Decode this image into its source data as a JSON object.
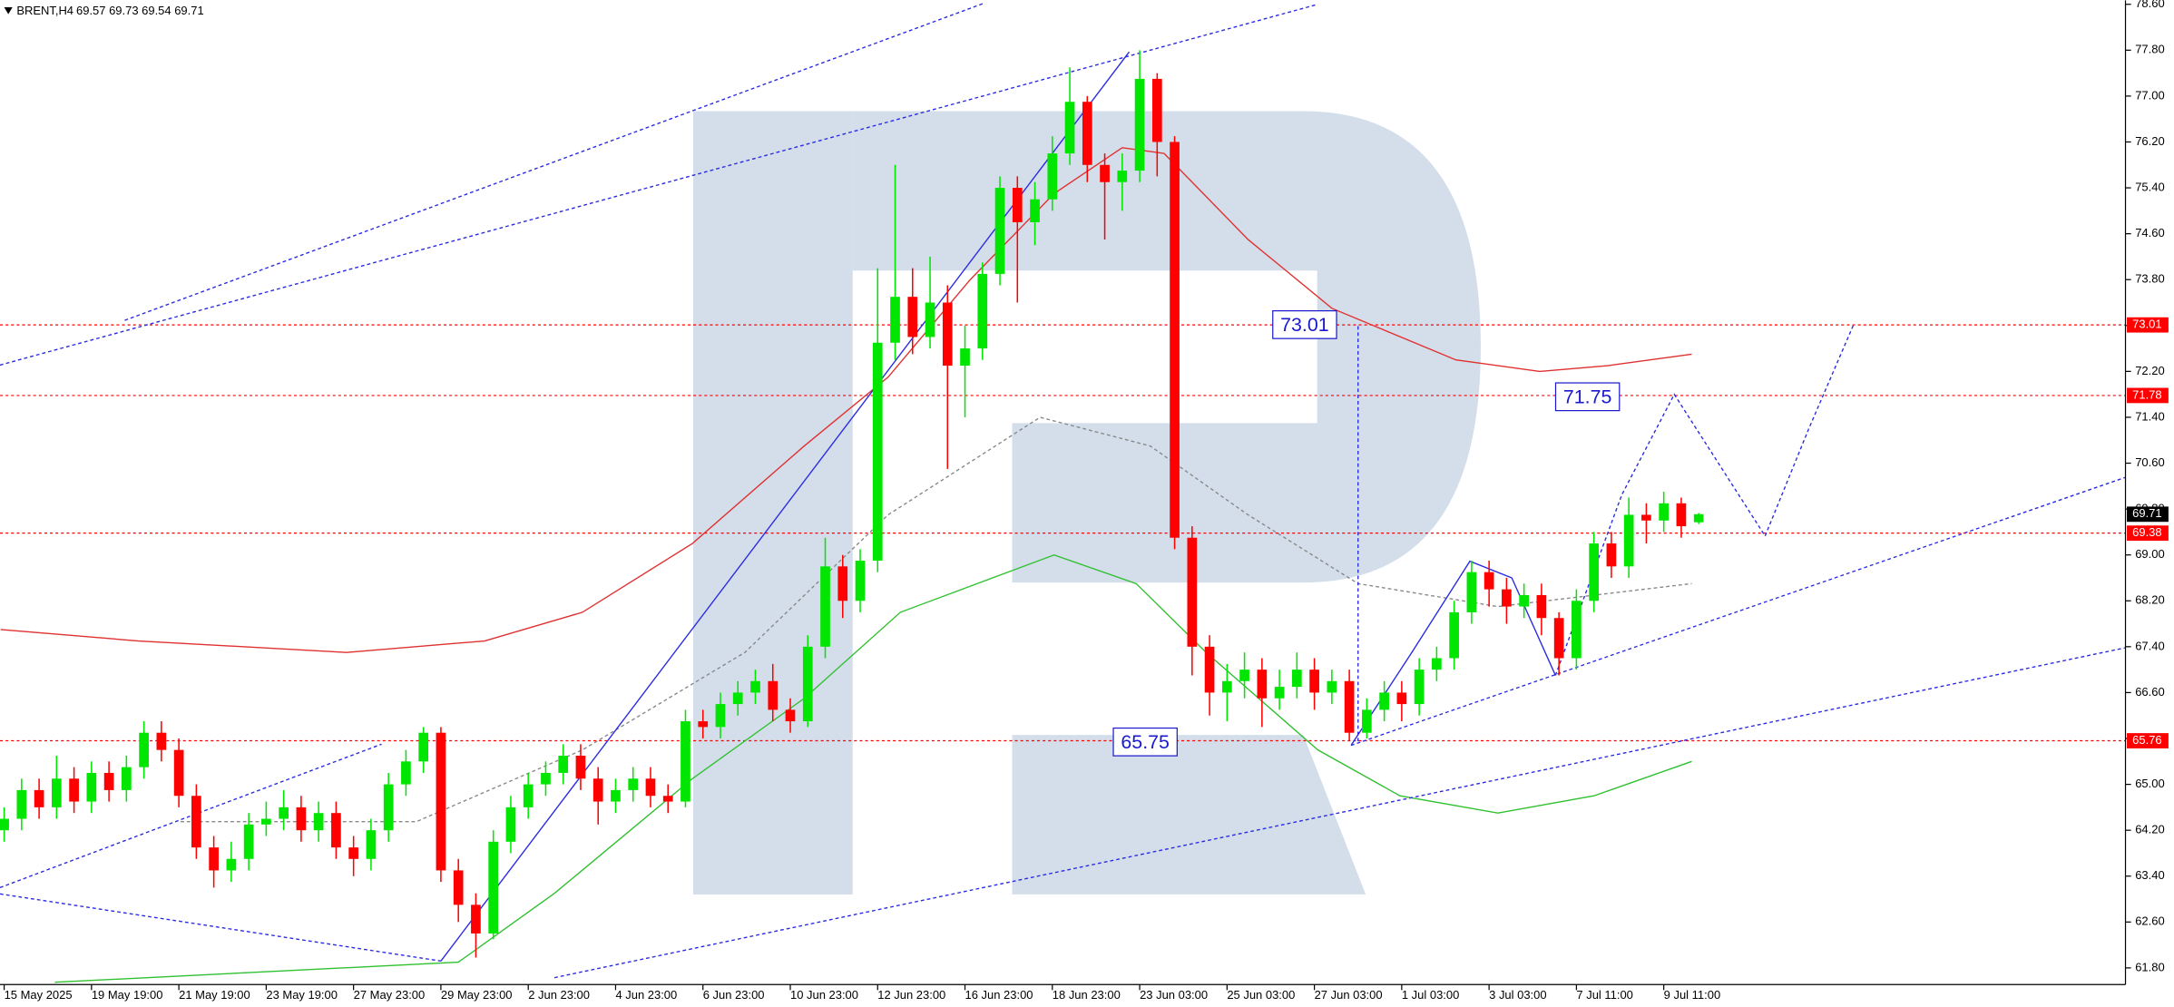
{
  "chart_data": {
    "type": "candlestick",
    "title": "BRENT,H4",
    "ohlc_text": "69.57 69.73 69.54 69.71",
    "up_color": "#00e600",
    "down_color": "#ff0000",
    "categories": [
      "15 May 2025",
      null,
      null,
      null,
      null,
      "19 May 19:00",
      null,
      null,
      null,
      null,
      "21 May 19:00",
      null,
      null,
      null,
      null,
      "23 May 19:00",
      null,
      null,
      null,
      null,
      "27 May 23:00",
      null,
      null,
      null,
      null,
      "29 May 23:00",
      null,
      null,
      null,
      null,
      "2 Jun 23:00",
      null,
      null,
      null,
      null,
      "4 Jun 23:00",
      null,
      null,
      null,
      null,
      "6 Jun 23:00",
      null,
      null,
      null,
      null,
      "10 Jun 23:00",
      null,
      null,
      null,
      null,
      "12 Jun 23:00",
      null,
      null,
      null,
      null,
      "16 Jun 23:00",
      null,
      null,
      null,
      null,
      "18 Jun 23:00",
      null,
      null,
      null,
      null,
      "23 Jun 03:00",
      null,
      null,
      null,
      null,
      "25 Jun 03:00",
      null,
      null,
      null,
      null,
      "27 Jun 03:00",
      null,
      null,
      null,
      null,
      "1 Jul 03:00",
      null,
      null,
      null,
      null,
      "3 Jul 03:00",
      null,
      null,
      null,
      null,
      "7 Jul 11:00",
      null,
      null,
      null,
      null,
      "9 Jul 11:00",
      null,
      null
    ],
    "open": [
      64.2,
      64.4,
      64.9,
      64.6,
      65.1,
      64.7,
      65.2,
      64.9,
      65.3,
      65.9,
      65.6,
      64.8,
      63.9,
      63.5,
      63.7,
      64.3,
      64.4,
      64.6,
      64.2,
      64.5,
      63.9,
      63.7,
      64.2,
      65.0,
      65.4,
      65.9,
      63.5,
      62.9,
      62.4,
      64.0,
      64.6,
      65.0,
      65.2,
      65.5,
      65.1,
      64.7,
      64.9,
      65.1,
      64.8,
      64.7,
      66.1,
      66.0,
      66.4,
      66.6,
      66.8,
      66.3,
      66.1,
      67.4,
      68.8,
      68.2,
      68.9,
      72.7,
      73.5,
      72.8,
      73.4,
      72.3,
      72.6,
      73.9,
      75.4,
      74.8,
      75.2,
      76.0,
      76.9,
      75.8,
      75.5,
      75.7,
      77.3,
      76.2,
      69.3,
      67.4,
      66.6,
      66.8,
      67.0,
      66.5,
      66.7,
      67.0,
      66.6,
      66.8,
      65.9,
      66.3,
      66.6,
      66.4,
      67.0,
      67.2,
      68.0,
      68.7,
      68.4,
      68.1,
      68.3,
      67.9,
      67.2,
      68.2,
      69.2,
      68.8,
      69.7,
      69.6,
      69.9,
      69.57
    ],
    "high": [
      64.6,
      65.1,
      65.1,
      65.5,
      65.3,
      65.4,
      65.4,
      65.5,
      66.1,
      66.1,
      65.8,
      65.0,
      64.1,
      64.0,
      64.5,
      64.7,
      64.9,
      64.8,
      64.7,
      64.7,
      64.1,
      64.4,
      65.2,
      65.6,
      66.0,
      66.0,
      63.7,
      63.1,
      64.2,
      64.8,
      65.2,
      65.4,
      65.7,
      65.7,
      65.3,
      65.1,
      65.3,
      65.3,
      65.0,
      66.3,
      66.3,
      66.6,
      66.8,
      67.0,
      67.1,
      66.5,
      67.6,
      69.3,
      69.0,
      69.1,
      74.0,
      75.8,
      74.0,
      74.2,
      73.7,
      73.0,
      74.1,
      75.6,
      75.6,
      75.5,
      76.3,
      77.5,
      77.0,
      76.0,
      76.0,
      77.8,
      77.4,
      76.3,
      69.5,
      67.6,
      67.1,
      67.3,
      67.2,
      67.0,
      67.3,
      67.2,
      67.0,
      67.0,
      66.5,
      66.8,
      66.8,
      67.2,
      67.4,
      68.2,
      68.9,
      68.9,
      68.6,
      68.5,
      68.5,
      68.0,
      68.4,
      69.4,
      69.4,
      70.0,
      69.9,
      70.1,
      70.0,
      69.73
    ],
    "low": [
      64.0,
      64.2,
      64.4,
      64.4,
      64.5,
      64.5,
      64.7,
      64.7,
      65.1,
      65.4,
      64.6,
      63.7,
      63.2,
      63.3,
      63.5,
      64.1,
      64.2,
      64.0,
      64.0,
      63.7,
      63.4,
      63.5,
      64.0,
      64.8,
      65.2,
      63.3,
      62.6,
      61.98,
      62.3,
      63.8,
      64.4,
      64.8,
      65.0,
      64.9,
      64.3,
      64.5,
      64.7,
      64.6,
      64.5,
      64.6,
      65.8,
      65.8,
      66.2,
      66.4,
      66.1,
      65.9,
      66.0,
      67.2,
      67.9,
      68.0,
      68.7,
      72.4,
      72.5,
      72.6,
      70.5,
      71.4,
      72.4,
      73.7,
      73.4,
      74.4,
      75.0,
      75.8,
      75.5,
      74.5,
      75.0,
      75.5,
      75.6,
      69.1,
      66.9,
      66.2,
      66.1,
      66.5,
      66.0,
      66.3,
      66.5,
      66.3,
      66.4,
      65.75,
      65.8,
      66.1,
      66.1,
      66.2,
      66.8,
      67.0,
      67.8,
      68.1,
      67.8,
      67.9,
      67.6,
      66.9,
      67.0,
      68.0,
      68.6,
      68.6,
      69.2,
      69.4,
      69.3,
      69.54
    ],
    "close": [
      64.4,
      64.9,
      64.6,
      65.1,
      64.7,
      65.2,
      64.9,
      65.3,
      65.9,
      65.6,
      64.8,
      63.9,
      63.5,
      63.7,
      64.3,
      64.4,
      64.6,
      64.2,
      64.5,
      63.9,
      63.7,
      64.2,
      65.0,
      65.4,
      65.9,
      63.5,
      62.9,
      62.4,
      64.0,
      64.6,
      65.0,
      65.2,
      65.5,
      65.1,
      64.7,
      64.9,
      65.1,
      64.8,
      64.7,
      66.1,
      66.0,
      66.4,
      66.6,
      66.8,
      66.3,
      66.1,
      67.4,
      68.8,
      68.2,
      68.9,
      72.7,
      73.5,
      72.8,
      73.4,
      72.3,
      72.6,
      73.9,
      75.4,
      74.8,
      75.2,
      76.0,
      76.9,
      75.8,
      75.5,
      75.7,
      77.3,
      76.2,
      69.3,
      67.4,
      66.6,
      66.8,
      67.0,
      66.5,
      66.7,
      67.0,
      66.6,
      66.8,
      65.9,
      66.3,
      66.6,
      66.4,
      67.0,
      67.2,
      68.0,
      68.7,
      68.4,
      68.1,
      68.3,
      67.9,
      67.2,
      68.2,
      69.2,
      68.8,
      69.7,
      69.6,
      69.9,
      69.5,
      69.71
    ],
    "ylim": [
      61.51,
      78.67
    ],
    "yticks": [
      {
        "value": 61.8,
        "label": "61.80"
      },
      {
        "value": 62.6,
        "label": "62.60"
      },
      {
        "value": 63.4,
        "label": "63.40"
      },
      {
        "value": 64.2,
        "label": "64.20"
      },
      {
        "value": 65.0,
        "label": "65.00"
      },
      {
        "value": 65.8,
        "label": "65.80"
      },
      {
        "value": 66.6,
        "label": "66.60"
      },
      {
        "value": 67.4,
        "label": "67.40"
      },
      {
        "value": 68.2,
        "label": "68.20"
      },
      {
        "value": 69.0,
        "label": "69.00"
      },
      {
        "value": 69.8,
        "label": "69.80"
      },
      {
        "value": 70.6,
        "label": "70.60"
      },
      {
        "value": 71.4,
        "label": "71.40"
      },
      {
        "value": 72.2,
        "label": "72.20"
      },
      {
        "value": 73.0,
        "label": "73.00"
      },
      {
        "value": 73.8,
        "label": "73.80"
      },
      {
        "value": 74.6,
        "label": "74.60"
      },
      {
        "value": 75.4,
        "label": "75.40"
      },
      {
        "value": 76.2,
        "label": "76.20"
      },
      {
        "value": 77.0,
        "label": "77.00"
      },
      {
        "value": 77.8,
        "label": "77.80"
      },
      {
        "value": 78.6,
        "label": "78.60"
      }
    ],
    "price_labels": [
      {
        "value": 73.01,
        "label": "73.01",
        "color": "#ff0000",
        "line": true
      },
      {
        "value": 71.78,
        "label": "71.78",
        "color": "#ff0000",
        "line": true
      },
      {
        "value": 69.71,
        "label": "69.71",
        "color": "#000000",
        "line": false
      },
      {
        "value": 69.38,
        "label": "69.38",
        "color": "#ff0000",
        "line": true
      },
      {
        "value": 65.76,
        "label": "65.76",
        "color": "#ff0000",
        "line": true
      }
    ],
    "annotations": [
      {
        "text": "73.01"
      },
      {
        "text": "71.75"
      },
      {
        "text": "65.75"
      }
    ],
    "overlays": [
      {
        "color": "#e03030",
        "dash": false,
        "x": [
          -0.2,
          7.7,
          19.6,
          27.5,
          33.1,
          39.4,
          45.8,
          50.6,
          55.3,
          60.1,
          64.0,
          66.4,
          71.2,
          76.0,
          83.1,
          87.9,
          91.8,
          96.6
        ],
        "values": [
          67.7,
          67.5,
          67.3,
          67.5,
          68.0,
          69.2,
          70.9,
          72.1,
          73.8,
          75.3,
          76.1,
          76.0,
          74.5,
          73.3,
          72.4,
          72.2,
          72.3,
          72.5
        ]
      },
      {
        "color": "#30c030",
        "dash": false,
        "x": [
          2.9,
          26,
          31.5,
          39.4,
          45.8,
          51.3,
          60.1,
          64.8,
          68.8,
          75.2,
          79.9,
          85.5,
          91.0,
          96.6
        ],
        "values": [
          61.55,
          61.9,
          63.1,
          65.1,
          66.5,
          68.0,
          69.0,
          68.5,
          67.3,
          65.6,
          64.8,
          64.5,
          64.8,
          65.4
        ]
      },
      {
        "color": "#888888",
        "dash": true,
        "x": [
          10.1,
          23.6,
          33.1,
          42.4,
          50.6,
          59.3,
          65.6,
          71.2,
          77.5,
          85.5,
          96.6
        ],
        "values": [
          64.35,
          64.35,
          65.6,
          67.3,
          69.7,
          71.4,
          70.9,
          69.7,
          68.5,
          68.1,
          68.5
        ]
      },
      {
        "color": "#2a2ae0",
        "dash": true,
        "x": [
          -0.24,
          75.2
        ],
        "values": [
          72.31,
          78.6
        ]
      },
      {
        "color": "#2a2ae0",
        "dash": true,
        "x": [
          6.9,
          56.1
        ],
        "values": [
          73.09,
          78.62
        ]
      },
      {
        "color": "#2a2ae0",
        "dash": true,
        "x": [
          -0.24,
          21.6
        ],
        "values": [
          63.2,
          65.7
        ]
      },
      {
        "color": "#2a2ae0",
        "dash": true,
        "x": [
          -0.24,
          25
        ],
        "values": [
          63.09,
          61.92
        ]
      },
      {
        "color": "#2a2ae0",
        "dash": false,
        "x": [
          25,
          64.4
        ],
        "values": [
          61.92,
          77.77
        ]
      },
      {
        "color": "#2a2ae0",
        "dash": true,
        "x": [
          31.5,
          121.4
        ],
        "values": [
          61.63,
          67.38
        ]
      },
      {
        "color": "#2a2ae0",
        "dash": true,
        "x": [
          77.1,
          121.4
        ],
        "values": [
          65.68,
          70.35
        ]
      },
      {
        "color": "#2a2ae0",
        "dash": true,
        "x": [
          77.5,
          77.5
        ],
        "values": [
          65.75,
          73.01
        ]
      },
      {
        "color": "#2a2ae0",
        "dash": false,
        "x": [
          77.1,
          80.6,
          83.9,
          86.3,
          88.8
        ],
        "values": [
          65.68,
          67.31,
          68.89,
          68.6,
          66.9
        ]
      },
      {
        "color": "#2a2ae0",
        "dash": true,
        "x": [
          88.8,
          92.6,
          95.6,
          100.8,
          103.3,
          105.9
        ],
        "values": [
          66.9,
          70.05,
          71.8,
          69.33,
          71.2,
          73.04
        ]
      }
    ]
  }
}
